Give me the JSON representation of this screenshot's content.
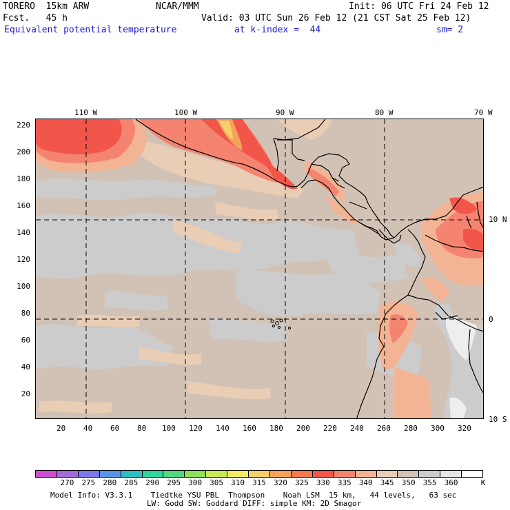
{
  "header": {
    "model": "TORERO  15km ARW",
    "org": "NCAR/MMM",
    "init": "Init: 06 UTC Fri 24 Feb 12",
    "fcst": "Fcst.   45 h",
    "valid": "Valid: 03 UTC Sun 26 Feb 12 (21 CST Sat 25 Feb 12)",
    "field": "Equivalent potential temperature",
    "level": "at k-index =  44",
    "smooth": "sm= 2"
  },
  "map": {
    "lon_labels": [
      "110 W",
      "100 W",
      "90 W",
      "80 W",
      "70 W"
    ],
    "lat_labels": [
      "10 N",
      "0",
      "10 S"
    ],
    "y_ticks": [
      "220",
      "200",
      "180",
      "160",
      "140",
      "120",
      "100",
      "80",
      "60",
      "40",
      "20"
    ],
    "x_ticks": [
      "20",
      "40",
      "60",
      "80",
      "100",
      "120",
      "140",
      "160",
      "180",
      "200",
      "220",
      "240",
      "260",
      "280",
      "300",
      "320"
    ]
  },
  "colorbar": {
    "unit": "K",
    "labels": [
      "270",
      "275",
      "280",
      "285",
      "290",
      "295",
      "300",
      "305",
      "310",
      "315",
      "320",
      "325",
      "330",
      "335",
      "340",
      "345",
      "350",
      "355",
      "360"
    ],
    "colors": [
      "#cc4fd4",
      "#a26bd8",
      "#7b79e8",
      "#5a94e4",
      "#2ec0c0",
      "#2ed69c",
      "#53d67e",
      "#8fe05a",
      "#c8ea5a",
      "#f1ec62",
      "#f5cf6b",
      "#f5a35c",
      "#f27a52",
      "#f2564a",
      "#f48470",
      "#f2b494",
      "#e9cdb5",
      "#d2c2b6",
      "#cccccc",
      "#e6e6e6",
      "#ffffff"
    ],
    "field_colors": {
      "base": "#d2c2b6",
      "gray": "#cccccc",
      "light": "#e9cdb5",
      "salmon": "#f2b494",
      "pink": "#f48470",
      "red": "#f2564a",
      "orange": "#f5a35c",
      "yellow": "#f5cf6b",
      "white": "#eeeeee"
    }
  },
  "footer": {
    "line1": "Model Info: V3.3.1    Tiedtke YSU PBL  Thompson    Noah LSM  15 km,   44 levels,   63 sec",
    "line2": "LW: Godd SW: Goddard DIFF: simple KM: 2D Smagor"
  }
}
